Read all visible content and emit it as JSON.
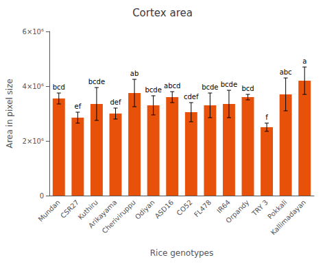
{
  "chart_data": {
    "type": "bar",
    "title": "Cortex area",
    "xlabel": "Rice genotypes",
    "ylabel": "Area in pixel size",
    "categories": [
      "Mundan",
      "CSR27",
      "Kuthiru",
      "Arikayama",
      "Cheriviruppu",
      "Odiyan",
      "ASD16",
      "CO52",
      "FL478",
      "IR64",
      "Orpandy",
      "TRY 3",
      "Pokkali",
      "Kallimadayan"
    ],
    "values": [
      3550000,
      2850000,
      3350000,
      3000000,
      3750000,
      3300000,
      3600000,
      3050000,
      3300000,
      3350000,
      3600000,
      2500000,
      3700000,
      4200000
    ],
    "errors": [
      200000,
      200000,
      600000,
      200000,
      500000,
      350000,
      200000,
      350000,
      450000,
      500000,
      100000,
      150000,
      600000,
      500000
    ],
    "annotations": [
      "bcd",
      "ef",
      "bcde",
      "def",
      "ab",
      "bcde",
      "abcd",
      "cdef",
      "bcde",
      "bcde",
      "bcd",
      "f",
      "abc",
      "a"
    ],
    "color": "#E8510A",
    "ylim": [
      0,
      6000000
    ],
    "yticks": [
      0,
      {
        "value": 2000000,
        "label": "2×10⁶"
      },
      {
        "value": 4000000,
        "label": "4×10⁶"
      },
      {
        "value": 6000000,
        "label": "6×10⁶"
      }
    ],
    "grid": false
  }
}
